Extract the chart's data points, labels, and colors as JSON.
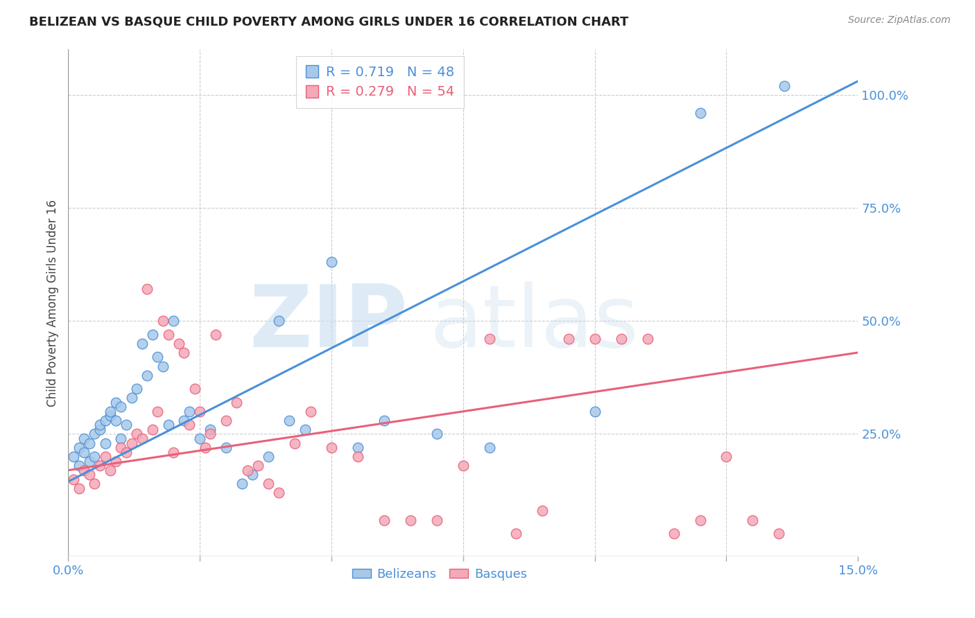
{
  "title": "BELIZEAN VS BASQUE CHILD POVERTY AMONG GIRLS UNDER 16 CORRELATION CHART",
  "source": "Source: ZipAtlas.com",
  "ylabel": "Child Poverty Among Girls Under 16",
  "r_belizean": 0.719,
  "n_belizean": 48,
  "r_basque": 0.279,
  "n_basque": 54,
  "xlim": [
    0.0,
    0.15
  ],
  "ylim": [
    -0.02,
    1.1
  ],
  "x_ticks": [
    0.0,
    0.025,
    0.05,
    0.075,
    0.1,
    0.125,
    0.15
  ],
  "y_ticks_right": [
    0.0,
    0.25,
    0.5,
    0.75,
    1.0
  ],
  "y_tick_labels_right": [
    "",
    "25.0%",
    "50.0%",
    "75.0%",
    "100.0%"
  ],
  "color_belizean": "#a8c8e8",
  "color_basque": "#f4a8b8",
  "color_line_belizean": "#4a90d9",
  "color_line_basque": "#e8607a",
  "color_axis_labels": "#4a90d9",
  "belizean_x": [
    0.001,
    0.002,
    0.002,
    0.003,
    0.003,
    0.004,
    0.004,
    0.005,
    0.005,
    0.006,
    0.006,
    0.007,
    0.007,
    0.008,
    0.008,
    0.009,
    0.009,
    0.01,
    0.01,
    0.011,
    0.012,
    0.013,
    0.014,
    0.015,
    0.016,
    0.017,
    0.018,
    0.019,
    0.02,
    0.022,
    0.023,
    0.025,
    0.027,
    0.03,
    0.033,
    0.035,
    0.038,
    0.04,
    0.042,
    0.045,
    0.05,
    0.055,
    0.06,
    0.07,
    0.08,
    0.1,
    0.12,
    0.136
  ],
  "belizean_y": [
    0.2,
    0.22,
    0.18,
    0.24,
    0.21,
    0.23,
    0.19,
    0.25,
    0.2,
    0.26,
    0.27,
    0.28,
    0.23,
    0.29,
    0.3,
    0.28,
    0.32,
    0.24,
    0.31,
    0.27,
    0.33,
    0.35,
    0.45,
    0.38,
    0.47,
    0.42,
    0.4,
    0.27,
    0.5,
    0.28,
    0.3,
    0.24,
    0.26,
    0.22,
    0.14,
    0.16,
    0.2,
    0.5,
    0.28,
    0.26,
    0.63,
    0.22,
    0.28,
    0.25,
    0.22,
    0.3,
    0.96,
    1.02
  ],
  "basque_x": [
    0.001,
    0.002,
    0.003,
    0.004,
    0.005,
    0.006,
    0.007,
    0.008,
    0.009,
    0.01,
    0.011,
    0.012,
    0.013,
    0.014,
    0.015,
    0.016,
    0.017,
    0.018,
    0.019,
    0.02,
    0.021,
    0.022,
    0.023,
    0.024,
    0.025,
    0.026,
    0.027,
    0.028,
    0.03,
    0.032,
    0.034,
    0.036,
    0.038,
    0.04,
    0.043,
    0.046,
    0.05,
    0.055,
    0.06,
    0.065,
    0.07,
    0.075,
    0.08,
    0.085,
    0.09,
    0.095,
    0.1,
    0.105,
    0.11,
    0.115,
    0.12,
    0.125,
    0.13,
    0.135
  ],
  "basque_y": [
    0.15,
    0.13,
    0.17,
    0.16,
    0.14,
    0.18,
    0.2,
    0.17,
    0.19,
    0.22,
    0.21,
    0.23,
    0.25,
    0.24,
    0.57,
    0.26,
    0.3,
    0.5,
    0.47,
    0.21,
    0.45,
    0.43,
    0.27,
    0.35,
    0.3,
    0.22,
    0.25,
    0.47,
    0.28,
    0.32,
    0.17,
    0.18,
    0.14,
    0.12,
    0.23,
    0.3,
    0.22,
    0.2,
    0.06,
    0.06,
    0.06,
    0.18,
    0.46,
    0.03,
    0.08,
    0.46,
    0.46,
    0.46,
    0.46,
    0.03,
    0.06,
    0.2,
    0.06,
    0.03
  ],
  "blue_line_x0": 0.0,
  "blue_line_y0": 0.145,
  "blue_line_x1": 0.15,
  "blue_line_y1": 1.03,
  "pink_line_x0": 0.0,
  "pink_line_y0": 0.17,
  "pink_line_x1": 0.15,
  "pink_line_y1": 0.43
}
